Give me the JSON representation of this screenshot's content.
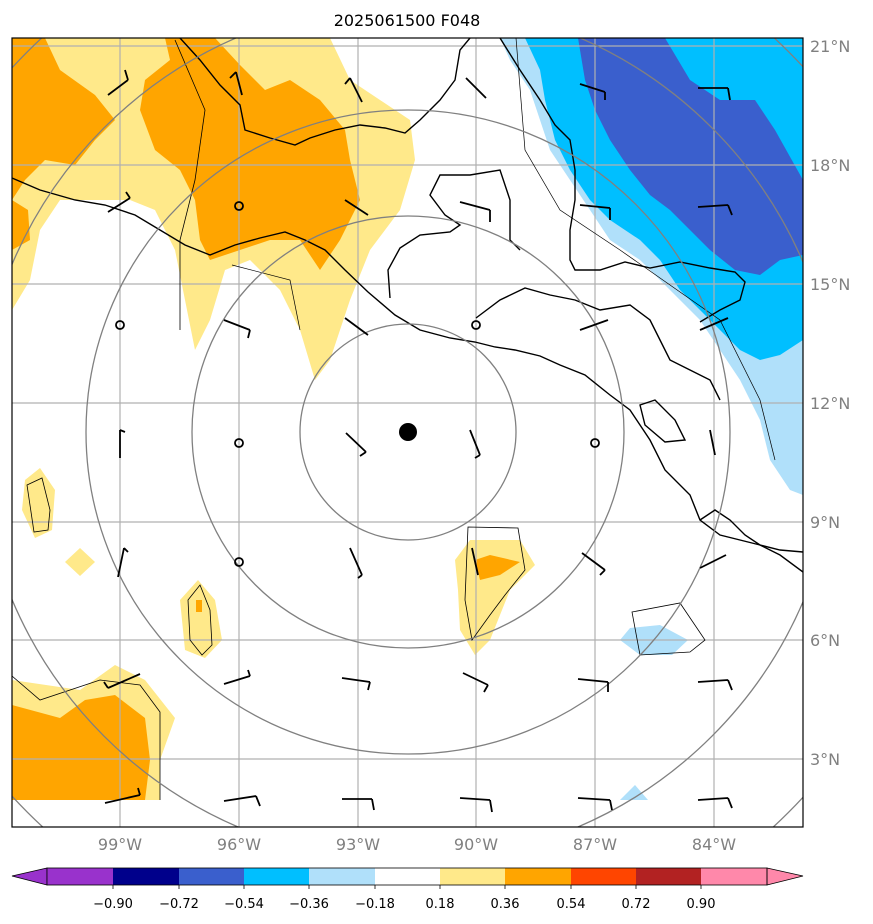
{
  "title": "2025061500 F048",
  "map": {
    "lat_labels": [
      "21°N",
      "18°N",
      "15°N",
      "12°N",
      "9°N",
      "6°N",
      "3°N"
    ],
    "lon_labels": [
      "99°W",
      "96°W",
      "93°W",
      "90°W",
      "87°W",
      "84°W"
    ],
    "lat_values": [
      21,
      18,
      15,
      12,
      9,
      6,
      3
    ],
    "lon_values": [
      -99,
      -96,
      -93,
      -90,
      -87,
      -84
    ],
    "extent": {
      "lon_min": -101.7,
      "lon_max": -81.7,
      "lat_min": 1.4,
      "lat_max": 21.3
    },
    "storm_center": {
      "lon": -91.7,
      "lat": 11.3
    },
    "range_rings": 5,
    "grid": true
  },
  "colorbar": {
    "tick_labels": [
      "−0.90",
      "−0.72",
      "−0.54",
      "−0.36",
      "−0.18",
      "0.18",
      "0.36",
      "0.54",
      "0.72",
      "0.90"
    ],
    "colors": [
      "#9932cc",
      "#00008b",
      "#3a5fcd",
      "#00bfff",
      "#b0e0fa",
      "#ffffff",
      "#ffe98a",
      "#ffa500",
      "#ff4500",
      "#b22222",
      "#ff88aa"
    ],
    "extend": "both"
  },
  "colors": {
    "grid": "#b0b0b0",
    "rings": "#808080",
    "coast": "#000000"
  }
}
